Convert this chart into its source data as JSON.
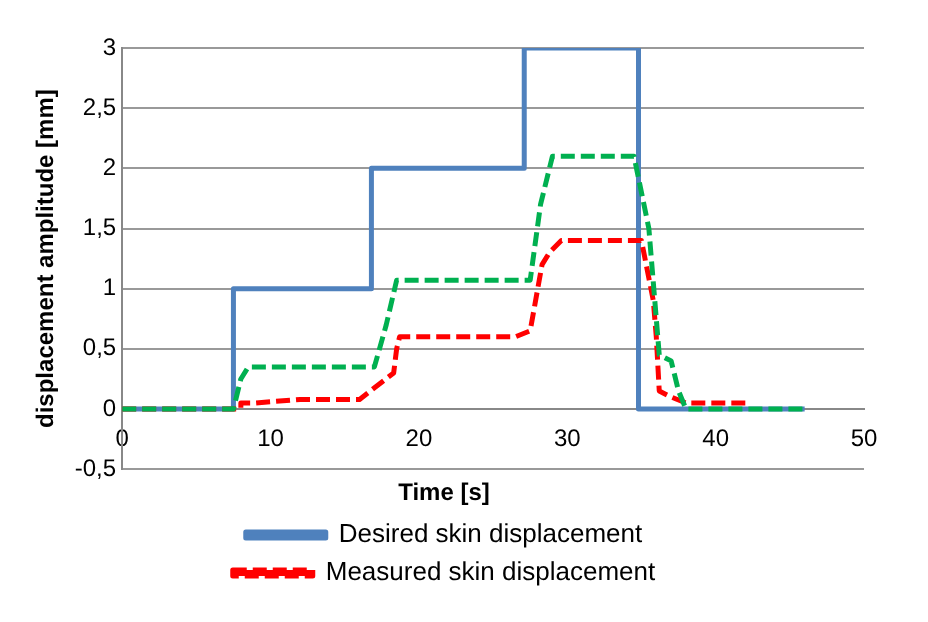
{
  "chart_data": {
    "type": "line",
    "xlabel": "Time [s]",
    "ylabel": "displacement amplitude [mm]",
    "xlim": [
      0,
      50
    ],
    "xticks": [
      0,
      10,
      20,
      30,
      40,
      50
    ],
    "ylim": [
      -0.5,
      3
    ],
    "yticks": [
      {
        "value": -0.5,
        "label": "-0,5"
      },
      0,
      {
        "value": 0.5,
        "label": "0,5"
      },
      1,
      {
        "value": 1.5,
        "label": "1,5"
      },
      2,
      {
        "value": 2.5,
        "label": "2,5"
      },
      3
    ],
    "grid": "y",
    "legend": "bottom",
    "marker": "none",
    "series": [
      {
        "name": "Desired skin displacement",
        "color": "#4f81bd",
        "line_style": "solid",
        "x": [
          0,
          7.5,
          7.5,
          16.8,
          16.8,
          27.1,
          27.1,
          34.8,
          34.8,
          46
        ],
        "values": [
          0,
          0,
          1,
          1,
          2,
          2,
          3,
          3,
          0,
          0
        ]
      },
      {
        "name": "Measured skin displacement",
        "color": "#ff0000",
        "line_style": "dashed",
        "x": [
          0,
          8,
          8,
          9,
          12,
          16,
          18.3,
          18.5,
          18.7,
          19.5,
          26.5,
          27.5,
          28.3,
          28.8,
          29.2,
          29.6,
          32,
          35,
          35.8,
          36,
          36.2,
          37,
          38,
          42
        ],
        "values": [
          0,
          0,
          0.05,
          0.05,
          0.08,
          0.08,
          0.3,
          0.5,
          0.6,
          0.6,
          0.6,
          0.65,
          1.2,
          1.3,
          1.35,
          1.4,
          1.4,
          1.4,
          0.9,
          0.6,
          0.15,
          0.1,
          0.05,
          0.05
        ]
      },
      {
        "color": "#00b050",
        "line_style": "dashed",
        "x": [
          0,
          7.5,
          8,
          8.5,
          17,
          17.8,
          18.5,
          27.5,
          28.2,
          29,
          34.5,
          35.5,
          36.2,
          37,
          37.5,
          38,
          46
        ],
        "values": [
          0,
          0,
          0.25,
          0.35,
          0.35,
          0.7,
          1.07,
          1.07,
          1.7,
          2.1,
          2.1,
          1.5,
          0.45,
          0.4,
          0.15,
          0,
          0
        ]
      }
    ]
  }
}
